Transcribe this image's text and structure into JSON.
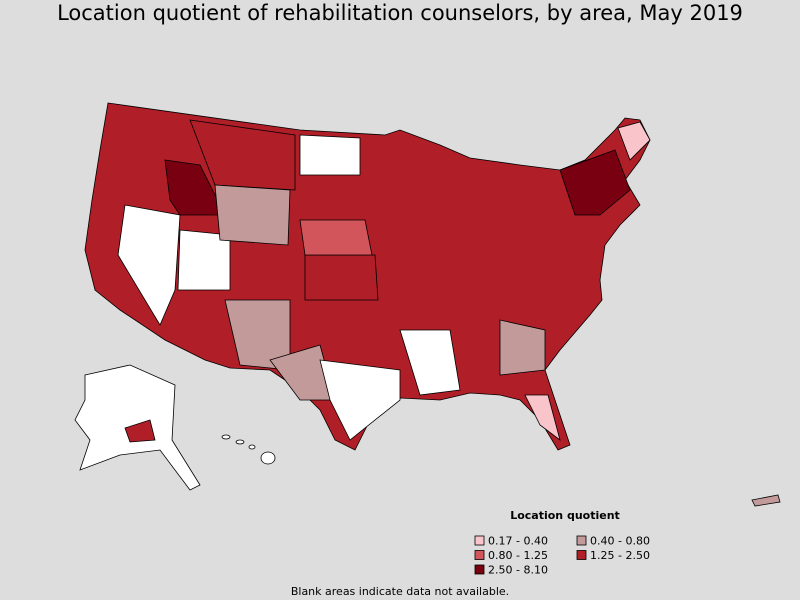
{
  "title": "Location quotient of rehabilitation counselors, by area, May 2019",
  "legend": {
    "title": "Location quotient",
    "items": [
      {
        "label": "0.17 - 0.40",
        "color": "#f9c4ca"
      },
      {
        "label": "0.40 - 0.80",
        "color": "#c39a9a"
      },
      {
        "label": "0.80 - 1.25",
        "color": "#d2555b"
      },
      {
        "label": "1.25 - 2.50",
        "color": "#b01e28"
      },
      {
        "label": "2.50 - 8.10",
        "color": "#780010"
      }
    ]
  },
  "footnote": "Blank areas indicate data not available."
}
